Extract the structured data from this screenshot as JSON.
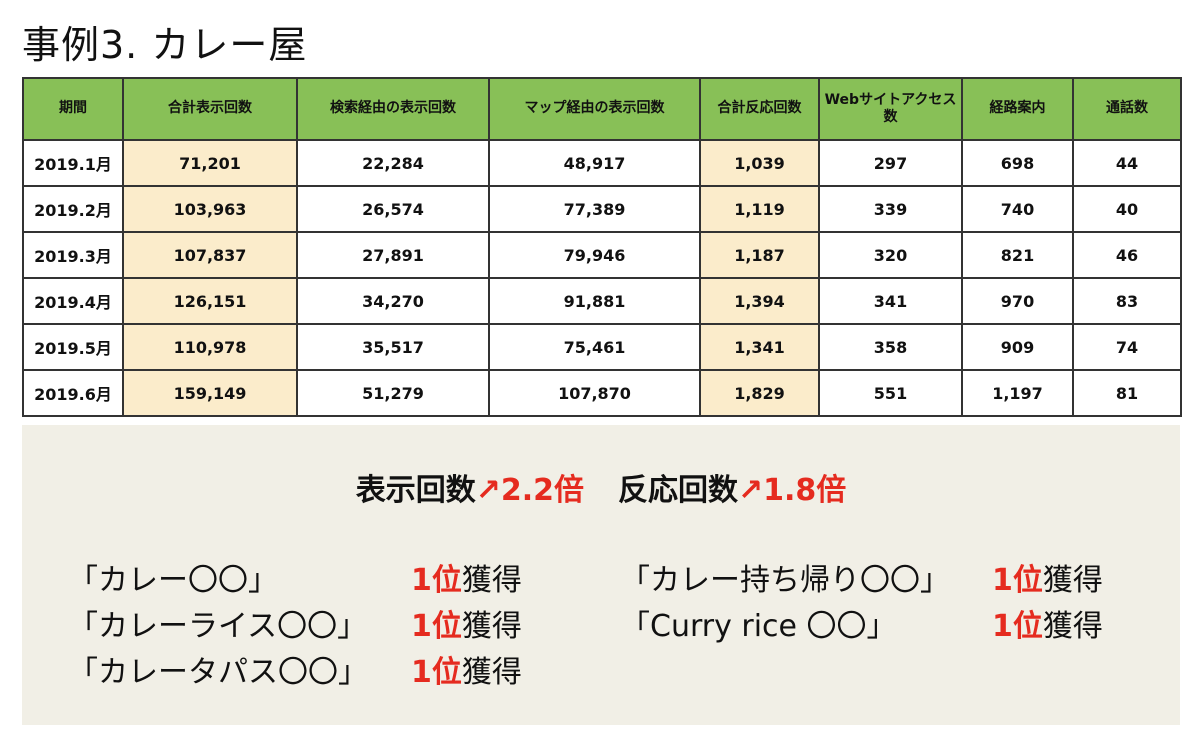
{
  "title": "事例3. カレー屋",
  "table": {
    "headers": [
      "期間",
      "合計表示回数",
      "検索経由の表示回数",
      "マップ経由の表示回数",
      "合計反応回数",
      "Webサイトアクセス数",
      "経路案内",
      "通話数"
    ],
    "rows": [
      [
        "2019.1月",
        "71,201",
        "22,284",
        "48,917",
        "1,039",
        "297",
        "698",
        "44"
      ],
      [
        "2019.2月",
        "103,963",
        "26,574",
        "77,389",
        "1,119",
        "339",
        "740",
        "40"
      ],
      [
        "2019.3月",
        "107,837",
        "27,891",
        "79,946",
        "1,187",
        "320",
        "821",
        "46"
      ],
      [
        "2019.4月",
        "126,151",
        "34,270",
        "91,881",
        "1,394",
        "341",
        "970",
        "83"
      ],
      [
        "2019.5月",
        "110,978",
        "35,517",
        "75,461",
        "1,341",
        "358",
        "909",
        "74"
      ],
      [
        "2019.6月",
        "159,149",
        "51,279",
        "107,870",
        "1,829",
        "551",
        "1,197",
        "81"
      ]
    ],
    "header_color": "#88c057",
    "highlight_color": "#fbeccb"
  },
  "summary": {
    "display_label": "表示回数",
    "display_value": "2.2倍",
    "reaction_label": "反応回数",
    "reaction_value": "1.8倍",
    "arrow": "↗",
    "accent_color": "#e52b1f",
    "rankings": [
      {
        "keyword": "「カレー〇〇」",
        "rank": "1位",
        "suffix": "獲得"
      },
      {
        "keyword": "「カレーライス〇〇」",
        "rank": "1位",
        "suffix": "獲得"
      },
      {
        "keyword": "「カレータパス〇〇」",
        "rank": "1位",
        "suffix": "獲得"
      },
      {
        "keyword": "「カレー持ち帰り〇〇」",
        "rank": "1位",
        "suffix": "獲得"
      },
      {
        "keyword": "「Curry rice 〇〇」",
        "rank": "1位",
        "suffix": "獲得"
      }
    ]
  }
}
